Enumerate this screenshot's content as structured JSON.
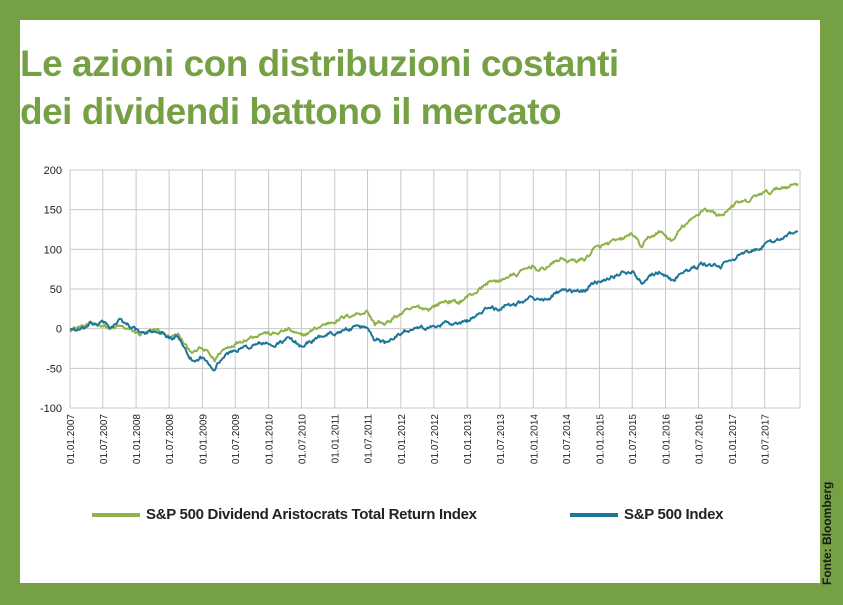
{
  "title_lines": [
    "Le azioni con distribuzioni costanti",
    "dei dividendi battono il mercato"
  ],
  "source": "Fonte: Bloomberg",
  "colors": {
    "frame": "#76a044",
    "aristocrats": "#8fb14a",
    "sp500": "#1d7599",
    "grid": "#c8c8c8"
  },
  "chart_data": {
    "type": "line",
    "title": "",
    "xlabel": "",
    "ylabel": "",
    "ylim": [
      -100,
      200
    ],
    "yticks": [
      200,
      150,
      100,
      50,
      0,
      -50,
      -100
    ],
    "grid": true,
    "legend_position": "bottom",
    "x_tick_labels": [
      "01.01.2007",
      "01.07.2007",
      "01.01.2008",
      "01.07.2008",
      "01.01.2009",
      "01.07.2009",
      "01.01.2010",
      "01.07.2010",
      "01.01.2011",
      "01.07.2011",
      "01.01.2012",
      "01.07.2012",
      "01.01.2013",
      "01.07.2013",
      "01.01.2014",
      "01.07.2014",
      "01.01.2015",
      "01.07.2015",
      "01.01.2016",
      "01.07.2016",
      "01.01.2017",
      "01.07.2017"
    ],
    "series": [
      {
        "name": "S&P 500 Dividend Aristocrats Total Return Index",
        "color": "#8fb14a",
        "points": [
          [
            "2007-01-01",
            0
          ],
          [
            "2007-03-01",
            2
          ],
          [
            "2007-05-01",
            6
          ],
          [
            "2007-07-01",
            5
          ],
          [
            "2007-08-15",
            -1
          ],
          [
            "2007-10-01",
            3
          ],
          [
            "2007-12-01",
            -2
          ],
          [
            "2008-01-20",
            -7
          ],
          [
            "2008-03-01",
            -5
          ],
          [
            "2008-05-01",
            -3
          ],
          [
            "2008-07-01",
            -10
          ],
          [
            "2008-08-20",
            -8
          ],
          [
            "2008-10-10",
            -25
          ],
          [
            "2008-11-20",
            -30
          ],
          [
            "2008-12-20",
            -25
          ],
          [
            "2009-02-01",
            -30
          ],
          [
            "2009-03-09",
            -40
          ],
          [
            "2009-04-15",
            -28
          ],
          [
            "2009-06-01",
            -22
          ],
          [
            "2009-08-01",
            -15
          ],
          [
            "2009-10-01",
            -10
          ],
          [
            "2009-12-01",
            -5
          ],
          [
            "2010-02-01",
            -7
          ],
          [
            "2010-04-20",
            -1
          ],
          [
            "2010-07-01",
            -10
          ],
          [
            "2010-09-01",
            -2
          ],
          [
            "2010-11-01",
            5
          ],
          [
            "2011-01-01",
            10
          ],
          [
            "2011-04-01",
            17
          ],
          [
            "2011-07-01",
            22
          ],
          [
            "2011-08-10",
            5
          ],
          [
            "2011-09-01",
            10
          ],
          [
            "2011-10-03",
            4
          ],
          [
            "2011-12-01",
            15
          ],
          [
            "2012-02-01",
            22
          ],
          [
            "2012-04-01",
            27
          ],
          [
            "2012-06-01",
            25
          ],
          [
            "2012-09-01",
            35
          ],
          [
            "2012-11-15",
            33
          ],
          [
            "2013-01-01",
            40
          ],
          [
            "2013-03-01",
            48
          ],
          [
            "2013-05-20",
            62
          ],
          [
            "2013-06-20",
            58
          ],
          [
            "2013-08-01",
            65
          ],
          [
            "2013-10-01",
            68
          ],
          [
            "2013-12-31",
            80
          ],
          [
            "2014-02-03",
            72
          ],
          [
            "2014-04-01",
            80
          ],
          [
            "2014-06-01",
            88
          ],
          [
            "2014-08-01",
            85
          ],
          [
            "2014-10-15",
            88
          ],
          [
            "2014-12-01",
            100
          ],
          [
            "2015-03-01",
            108
          ],
          [
            "2015-05-01",
            112
          ],
          [
            "2015-07-01",
            120
          ],
          [
            "2015-08-25",
            102
          ],
          [
            "2015-10-01",
            115
          ],
          [
            "2015-12-01",
            122
          ],
          [
            "2016-02-10",
            110
          ],
          [
            "2016-04-01",
            128
          ],
          [
            "2016-06-01",
            138
          ],
          [
            "2016-08-01",
            152
          ],
          [
            "2016-09-01",
            148
          ],
          [
            "2016-11-01",
            142
          ],
          [
            "2016-12-31",
            155
          ],
          [
            "2017-02-01",
            158
          ],
          [
            "2017-04-01",
            160
          ],
          [
            "2017-06-01",
            170
          ],
          [
            "2017-08-01",
            172
          ],
          [
            "2017-10-01",
            178
          ],
          [
            "2017-12-31",
            183
          ]
        ]
      },
      {
        "name": "S&P 500 Index",
        "color": "#1d7599",
        "points": [
          [
            "2007-01-01",
            0
          ],
          [
            "2007-03-01",
            -2
          ],
          [
            "2007-05-01",
            5
          ],
          [
            "2007-07-01",
            8
          ],
          [
            "2007-08-15",
            2
          ],
          [
            "2007-10-01",
            10
          ],
          [
            "2007-12-01",
            4
          ],
          [
            "2008-01-20",
            -5
          ],
          [
            "2008-03-01",
            -6
          ],
          [
            "2008-05-01",
            -2
          ],
          [
            "2008-07-01",
            -12
          ],
          [
            "2008-08-20",
            -10
          ],
          [
            "2008-10-10",
            -35
          ],
          [
            "2008-11-20",
            -42
          ],
          [
            "2008-12-20",
            -36
          ],
          [
            "2009-02-01",
            -42
          ],
          [
            "2009-03-09",
            -50
          ],
          [
            "2009-04-15",
            -38
          ],
          [
            "2009-06-01",
            -30
          ],
          [
            "2009-08-01",
            -25
          ],
          [
            "2009-10-01",
            -22
          ],
          [
            "2009-12-01",
            -18
          ],
          [
            "2010-02-01",
            -22
          ],
          [
            "2010-04-20",
            -12
          ],
          [
            "2010-07-01",
            -22
          ],
          [
            "2010-09-01",
            -15
          ],
          [
            "2010-11-01",
            -8
          ],
          [
            "2011-01-01",
            -5
          ],
          [
            "2011-04-01",
            0
          ],
          [
            "2011-07-01",
            2
          ],
          [
            "2011-08-10",
            -15
          ],
          [
            "2011-09-01",
            -12
          ],
          [
            "2011-10-03",
            -18
          ],
          [
            "2011-12-01",
            -8
          ],
          [
            "2012-02-01",
            -3
          ],
          [
            "2012-04-01",
            5
          ],
          [
            "2012-06-01",
            0
          ],
          [
            "2012-09-01",
            8
          ],
          [
            "2012-11-15",
            5
          ],
          [
            "2013-01-01",
            10
          ],
          [
            "2013-03-01",
            18
          ],
          [
            "2013-05-20",
            28
          ],
          [
            "2013-06-20",
            24
          ],
          [
            "2013-08-01",
            30
          ],
          [
            "2013-10-01",
            32
          ],
          [
            "2013-12-31",
            40
          ],
          [
            "2014-02-03",
            35
          ],
          [
            "2014-04-01",
            40
          ],
          [
            "2014-06-01",
            48
          ],
          [
            "2014-08-01",
            46
          ],
          [
            "2014-10-15",
            48
          ],
          [
            "2014-12-01",
            58
          ],
          [
            "2015-03-01",
            65
          ],
          [
            "2015-05-01",
            70
          ],
          [
            "2015-07-01",
            72
          ],
          [
            "2015-08-25",
            58
          ],
          [
            "2015-10-01",
            68
          ],
          [
            "2015-12-01",
            72
          ],
          [
            "2016-02-10",
            60
          ],
          [
            "2016-04-01",
            72
          ],
          [
            "2016-06-01",
            75
          ],
          [
            "2016-08-01",
            82
          ],
          [
            "2016-09-01",
            80
          ],
          [
            "2016-11-01",
            78
          ],
          [
            "2016-12-31",
            88
          ],
          [
            "2017-02-01",
            92
          ],
          [
            "2017-04-01",
            95
          ],
          [
            "2017-06-01",
            102
          ],
          [
            "2017-08-01",
            108
          ],
          [
            "2017-10-01",
            115
          ],
          [
            "2017-12-31",
            122
          ]
        ]
      }
    ]
  }
}
